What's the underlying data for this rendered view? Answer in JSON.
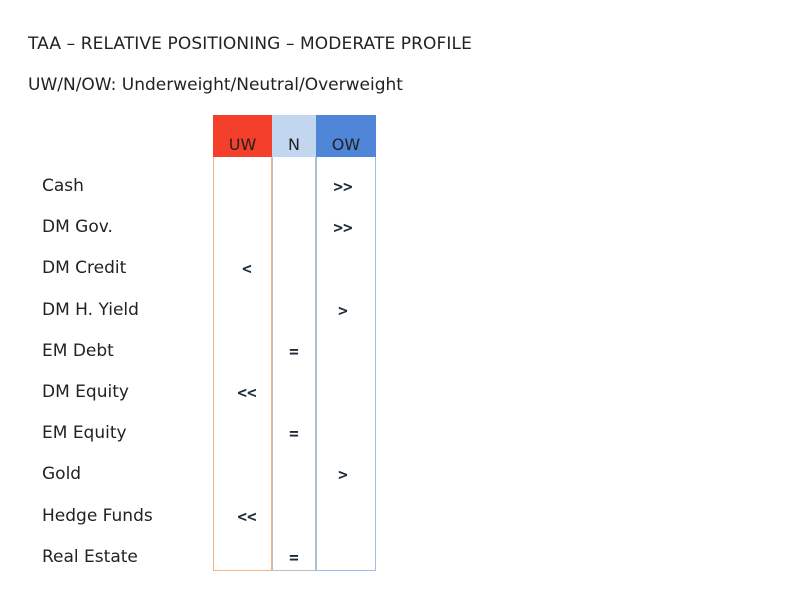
{
  "title": "TAA – RELATIVE POSITIONING – MODERATE PROFILE",
  "subtitle": "UW/N/OW: Underweight/Neutral/Overweight",
  "columns": {
    "uw": {
      "label": "UW",
      "color": "#f4402a"
    },
    "n": {
      "label": "N",
      "color": "#c3d6f0"
    },
    "ow": {
      "label": "OW",
      "color": "#4f86d8"
    }
  },
  "rows": [
    {
      "label": "Cash",
      "position": "ow",
      "marker": ">>"
    },
    {
      "label": "DM Gov.",
      "position": "ow",
      "marker": ">>"
    },
    {
      "label": "DM Credit",
      "position": "uw",
      "marker": "<"
    },
    {
      "label": "DM H. Yield",
      "position": "ow",
      "marker": ">"
    },
    {
      "label": "EM Debt",
      "position": "n",
      "marker": "="
    },
    {
      "label": "DM Equity",
      "position": "uw",
      "marker": "<<"
    },
    {
      "label": "EM Equity",
      "position": "n",
      "marker": "="
    },
    {
      "label": "Gold",
      "position": "ow",
      "marker": ">"
    },
    {
      "label": "Hedge Funds",
      "position": "uw",
      "marker": "<<"
    },
    {
      "label": "Real Estate",
      "position": "n",
      "marker": "="
    }
  ]
}
